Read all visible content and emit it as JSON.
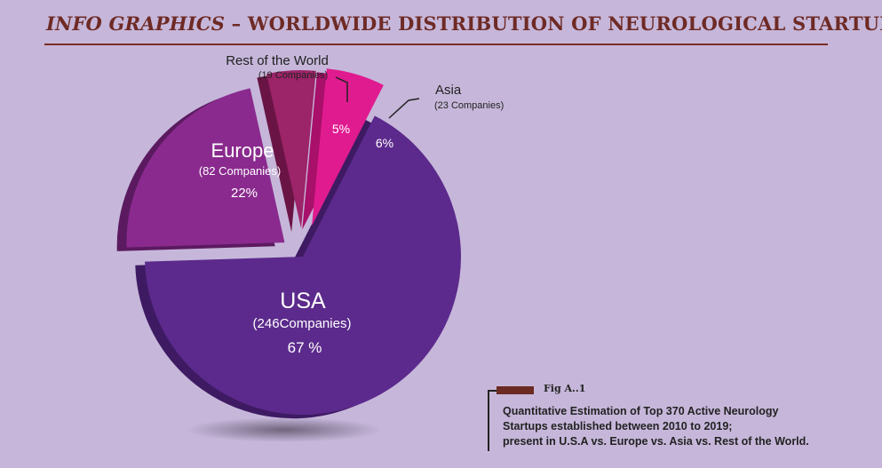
{
  "header": {
    "title_italic": "INFO GRAPHICS",
    "title_rest": " – WORLDWIDE DISTRIBUTION OF NEUROLOGICAL STARTUPS"
  },
  "chart_data": {
    "type": "pie",
    "slices": [
      {
        "name": "USA",
        "companies_label": "(246Companies)",
        "value": 67,
        "percent_label": "67 %",
        "color": "#5c2a8c"
      },
      {
        "name": "Europe",
        "companies_label": "(82 Companies)",
        "value": 22,
        "percent_label": "22%",
        "color": "#8a2a8e"
      },
      {
        "name": "Rest of the World",
        "companies_label": "(19 Companies)",
        "value": 5,
        "percent_label": "5%",
        "color": "#9c2468"
      },
      {
        "name": "Asia",
        "companies_label": "(23 Companies)",
        "value": 6,
        "percent_label": "6%",
        "color": "#e01b8f"
      }
    ]
  },
  "caption": {
    "fig_label": "Fig A..1",
    "lines": [
      "Quantitative Estimation of Top 370 Active Neurology",
      "Startups established between 2010 to 2019;",
      "present in U.S.A vs. Europe vs. Asia vs. Rest of the World."
    ]
  },
  "colors": {
    "background": "#c6b7da",
    "title": "#6e2a25",
    "usa_side": "#3e1a63",
    "europe_side": "#5b1a60",
    "row_side": "#6a1445",
    "asia_side": "#a8106a"
  }
}
